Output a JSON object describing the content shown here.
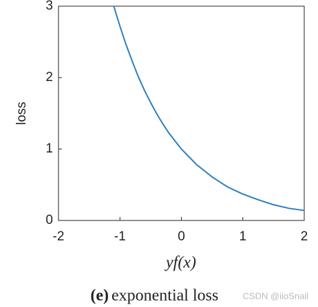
{
  "chart_data": {
    "type": "line",
    "x_label": "yf(x)",
    "y_label": "loss",
    "caption_label": "(e)",
    "caption": "exponential loss",
    "watermark": "CSDN @iioSnail",
    "x": [
      -1.1,
      -1,
      -0.9,
      -0.8,
      -0.7,
      -0.6,
      -0.5,
      -0.4,
      -0.3,
      -0.2,
      -0.1,
      0,
      0.25,
      0.5,
      0.75,
      1,
      1.25,
      1.5,
      1.75,
      2
    ],
    "series": [
      {
        "name": "exponential loss",
        "color": "#2a7ec2",
        "values": [
          3.0,
          2.72,
          2.46,
          2.23,
          2.01,
          1.82,
          1.65,
          1.49,
          1.35,
          1.22,
          1.11,
          1,
          0.78,
          0.61,
          0.47,
          0.37,
          0.29,
          0.22,
          0.17,
          0.14
        ]
      }
    ],
    "xlim": [
      -2,
      2
    ],
    "xticks": [
      -2,
      -1,
      0,
      1,
      2
    ],
    "ylim": [
      0,
      3
    ],
    "yticks": [
      0,
      1,
      2,
      3
    ]
  }
}
